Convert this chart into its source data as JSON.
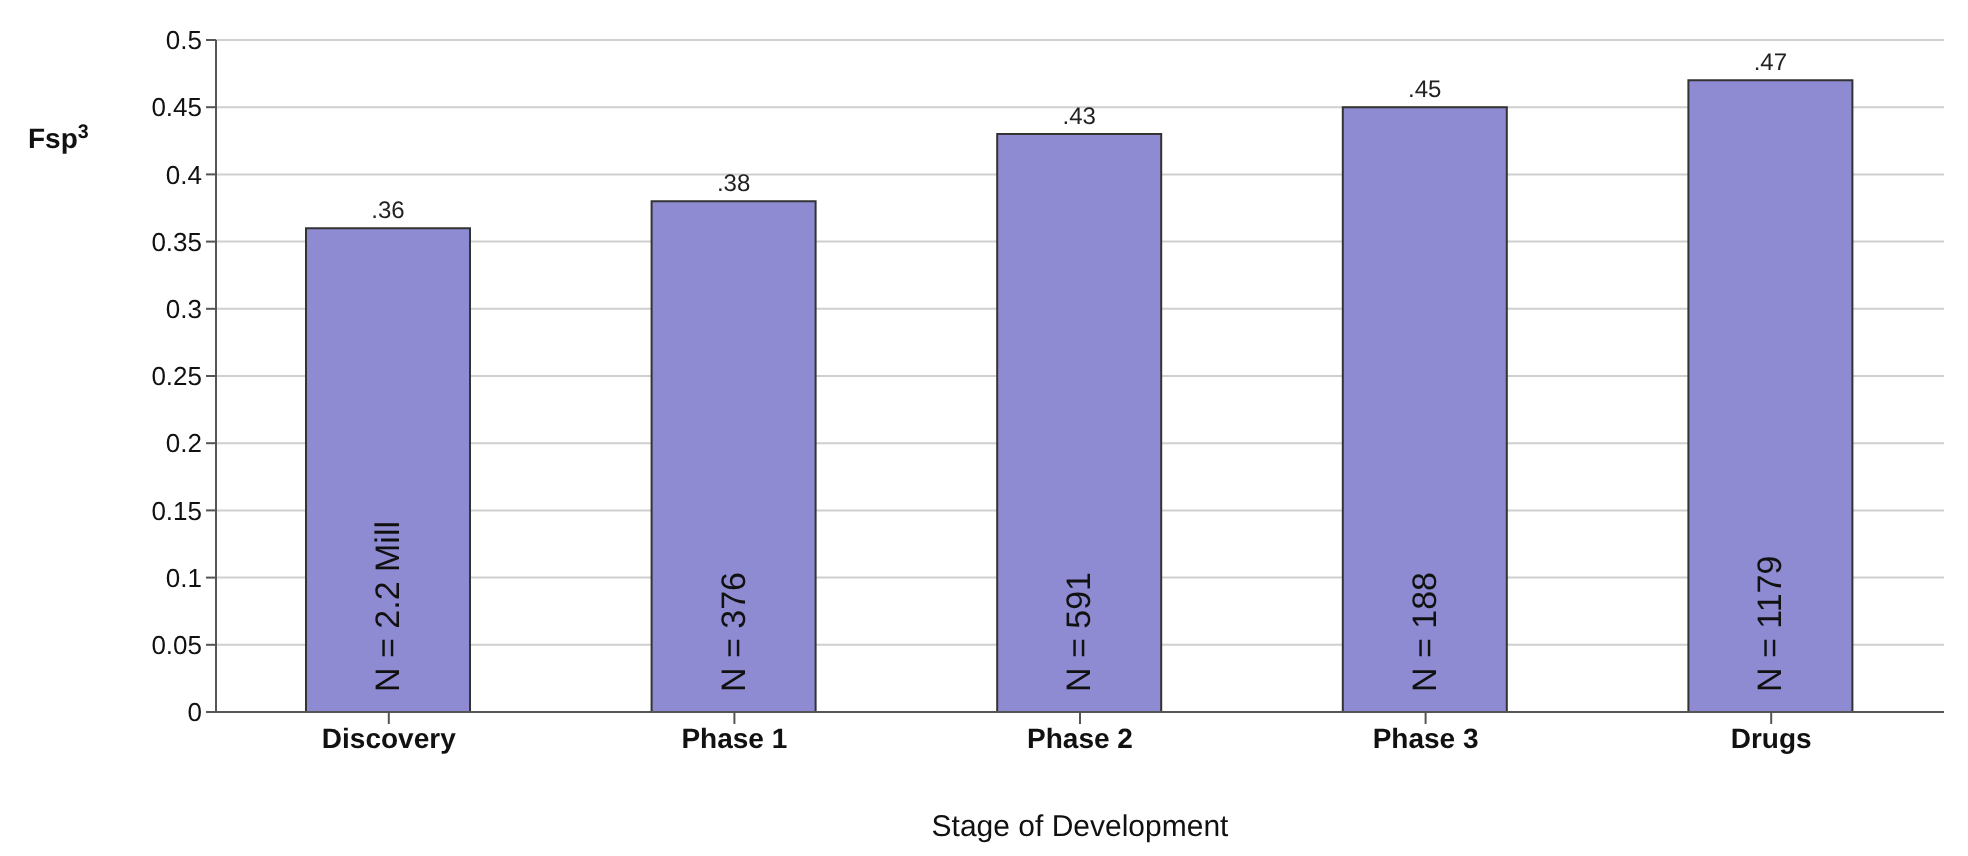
{
  "chart_data": {
    "type": "bar",
    "xlabel": "Stage of Development",
    "ylabel": "Fsp$^{3}$",
    "categories": [
      "Discovery",
      "Phase 1",
      "Phase 2",
      "Phase 3",
      "Drugs"
    ],
    "values": [
      0.36,
      0.38,
      0.43,
      0.45,
      0.47
    ],
    "value_labels": [
      ".36",
      ".38",
      ".43",
      ".45",
      ".47"
    ],
    "color": "#8f8bd2",
    "ylim": [
      0,
      0.5
    ],
    "yticks": [
      0,
      0.05,
      0.1,
      0.15,
      0.2,
      0.25,
      0.3,
      0.35,
      0.4,
      0.45,
      0.5
    ],
    "grid": "y",
    "annotations": [
      "N = 2.2 Mill",
      "N = 376",
      "N = 591",
      "N = 188",
      "N = 1179"
    ]
  }
}
